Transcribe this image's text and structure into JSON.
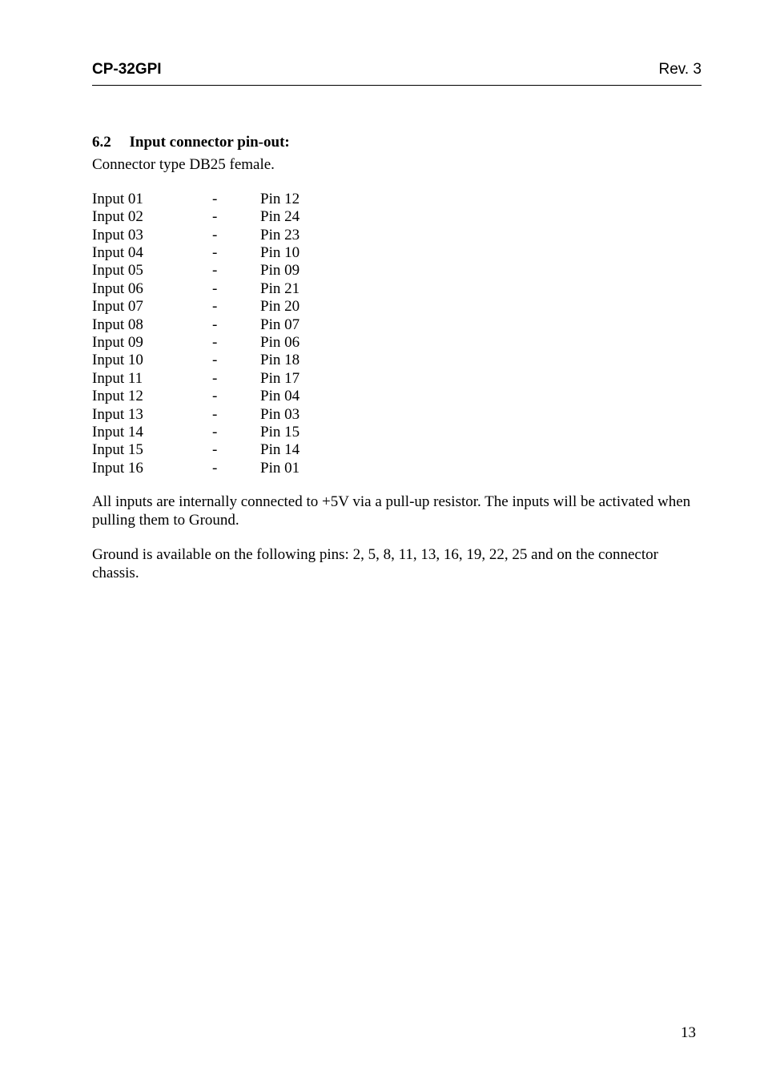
{
  "header": {
    "left": "CP-32GPI",
    "right": "Rev. 3"
  },
  "section": {
    "number": "6.2",
    "title": "Input connector pin-out:",
    "intro": "Connector type DB25 female."
  },
  "pin_table": [
    {
      "input": "Input 01",
      "dash": "-",
      "pin": "Pin 12"
    },
    {
      "input": "Input 02",
      "dash": "-",
      "pin": "Pin 24"
    },
    {
      "input": "Input 03",
      "dash": "-",
      "pin": "Pin 23"
    },
    {
      "input": "Input 04",
      "dash": "-",
      "pin": "Pin 10"
    },
    {
      "input": "Input 05",
      "dash": "-",
      "pin": "Pin 09"
    },
    {
      "input": "Input 06",
      "dash": "-",
      "pin": "Pin 21"
    },
    {
      "input": "Input 07",
      "dash": "-",
      "pin": "Pin 20"
    },
    {
      "input": "Input 08",
      "dash": "-",
      "pin": "Pin 07"
    },
    {
      "input": "Input 09",
      "dash": "-",
      "pin": "Pin 06"
    },
    {
      "input": "Input 10",
      "dash": "-",
      "pin": "Pin 18"
    },
    {
      "input": "Input 11",
      "dash": "-",
      "pin": "Pin 17"
    },
    {
      "input": "Input 12",
      "dash": "-",
      "pin": "Pin 04"
    },
    {
      "input": "Input 13",
      "dash": "-",
      "pin": "Pin 03"
    },
    {
      "input": "Input 14",
      "dash": "-",
      "pin": "Pin 15"
    },
    {
      "input": "Input 15",
      "dash": "-",
      "pin": "Pin 14"
    },
    {
      "input": "Input 16",
      "dash": "-",
      "pin": "Pin 01"
    }
  ],
  "paragraphs": {
    "p1": "All inputs are internally connected to +5V via a pull-up resistor. The inputs will be activated when pulling them to Ground.",
    "p2": "Ground is available on the following pins: 2, 5, 8, 11, 13, 16, 19, 22, 25 and on the connector chassis."
  },
  "page_number": "13"
}
